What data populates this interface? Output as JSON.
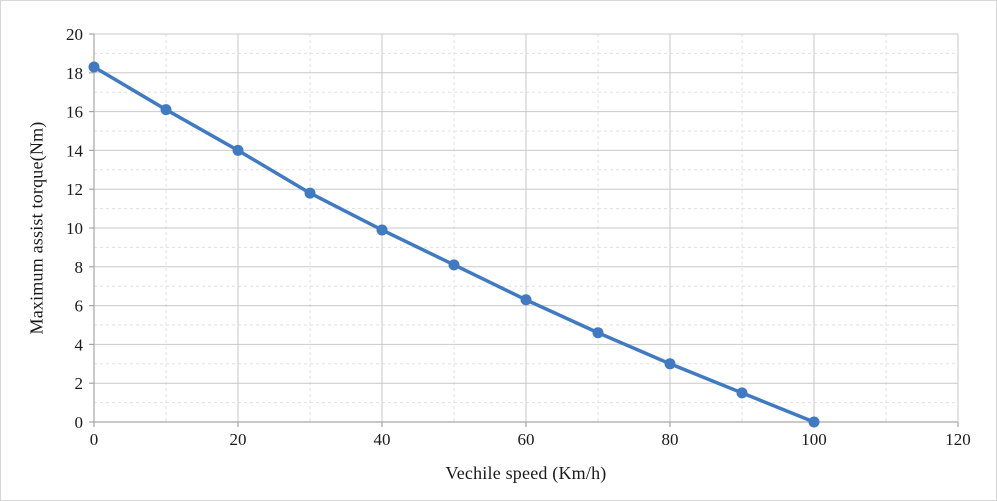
{
  "chart_data": {
    "type": "line",
    "title": "",
    "xlabel": "Vechile speed (Km/h)",
    "ylabel": "Maximum assist torque(Nm)",
    "x": [
      0,
      10,
      20,
      30,
      40,
      50,
      60,
      70,
      80,
      90,
      100
    ],
    "series": [
      {
        "name": "Maximum assist torque",
        "values": [
          18.3,
          16.1,
          14.0,
          11.8,
          9.9,
          8.1,
          6.3,
          4.6,
          3.0,
          1.5,
          0.0
        ]
      }
    ],
    "xlim": [
      0,
      120
    ],
    "ylim": [
      0,
      20
    ],
    "x_ticks": [
      0,
      20,
      40,
      60,
      80,
      100,
      120
    ],
    "y_ticks": [
      0,
      2,
      4,
      6,
      8,
      10,
      12,
      14,
      16,
      18,
      20
    ],
    "x_minor_step": 10,
    "y_minor_step": 1,
    "grid": true,
    "legend_position": "none",
    "line_color": "#3f7ac2",
    "marker": "circle",
    "marker_color": "#3f7ac2",
    "major_grid_color": "#c9c9c9",
    "minor_grid_color": "#e0e0e0",
    "axis_color": "#a6a6a6",
    "tick_label_color": "#1a1a1a"
  }
}
